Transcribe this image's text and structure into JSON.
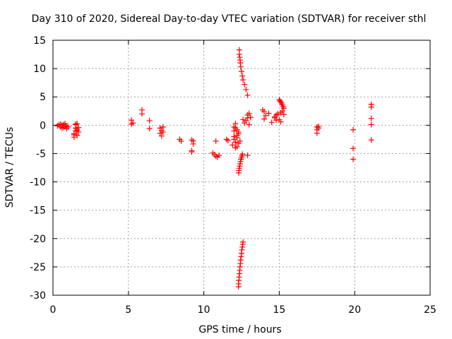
{
  "chart_data": {
    "type": "scatter",
    "title": "Day 310 of 2020, Sidereal Day-to-day VTEC variation (SDTVAR) for receiver sthl",
    "xlabel": "GPS time / hours",
    "ylabel": "SDTVAR / TECUs",
    "xlim": [
      0,
      25
    ],
    "ylim": [
      -30,
      15
    ],
    "xticks": [
      "0",
      "5",
      "10",
      "15",
      "20",
      "25"
    ],
    "yticks": [
      "15",
      "10",
      "5",
      "0",
      "-5",
      "-10",
      "-15",
      "-20",
      "-25",
      "-30"
    ],
    "grid": true,
    "marker": "plus",
    "color": "#ff0000",
    "series": [
      {
        "name": "SDTVAR",
        "x": [
          0.3,
          0.4,
          0.5,
          0.5,
          0.6,
          0.6,
          0.7,
          0.7,
          0.8,
          0.8,
          0.9,
          0.9,
          1.0,
          1.4,
          1.4,
          1.5,
          1.5,
          1.5,
          1.6,
          1.6,
          1.6,
          1.7,
          1.7,
          1.4,
          1.5,
          1.6,
          5.2,
          5.2,
          5.3,
          5.9,
          5.9,
          6.4,
          6.4,
          7.1,
          7.1,
          7.2,
          7.2,
          7.3,
          7.3,
          8.4,
          8.5,
          9.2,
          9.2,
          9.3,
          9.3,
          9.2,
          10.6,
          10.7,
          10.8,
          10.9,
          11.0,
          10.8,
          11.5,
          11.6,
          11.9,
          12.0,
          12.0,
          12.1,
          12.1,
          12.2,
          12.2,
          12.3,
          12.1,
          12.0,
          12.2,
          12.3,
          12.4,
          12.2,
          12.1,
          12.3,
          12.0,
          12.35,
          12.35,
          12.38,
          12.4,
          12.42,
          12.45,
          12.5,
          12.55,
          12.6,
          12.7,
          12.8,
          12.9,
          12.32,
          12.33,
          12.35,
          12.38,
          12.4,
          12.43,
          12.46,
          12.5,
          12.53,
          12.56,
          12.3,
          12.3,
          12.32,
          12.34,
          12.36,
          12.38,
          12.4,
          12.42,
          12.44,
          12.47,
          12.5,
          12.52,
          12.55,
          12.58,
          12.6,
          12.6,
          12.7,
          12.8,
          12.9,
          12.9,
          13.0,
          13.1,
          13.0,
          12.9,
          13.9,
          14.0,
          14.1,
          14.0,
          14.3,
          14.5,
          14.7,
          14.8,
          14.9,
          15.0,
          15.1,
          14.7,
          14.8,
          15.0,
          15.05,
          15.1,
          15.15,
          15.2,
          15.25,
          15.3,
          15.1,
          15.2,
          15.3,
          17.5,
          17.5,
          17.5,
          17.6,
          17.6,
          19.9,
          19.9,
          19.9,
          21.1,
          21.1,
          21.1,
          21.1,
          21.1
        ],
        "y": [
          -0.1,
          0.1,
          -0.3,
          0.2,
          -0.5,
          0.0,
          -0.4,
          0.1,
          -0.2,
          0.3,
          -0.6,
          -0.1,
          -0.3,
          -2.1,
          -1.5,
          -1.0,
          -0.5,
          0.2,
          -1.8,
          -0.9,
          0.3,
          -1.2,
          -0.4,
          -1.7,
          0.1,
          -0.7,
          0.2,
          0.9,
          0.4,
          2.7,
          2.0,
          0.8,
          -0.6,
          -0.5,
          -1.4,
          -1.9,
          -0.9,
          -0.3,
          -1.2,
          -2.5,
          -2.8,
          -2.6,
          -4.7,
          -3.3,
          -2.8,
          -4.5,
          -4.9,
          -5.2,
          -5.5,
          -5.6,
          -5.3,
          -2.8,
          -2.5,
          -2.7,
          -3.5,
          -2.0,
          -1.0,
          -3.0,
          -0.5,
          -2.2,
          -3.8,
          -1.5,
          0.3,
          -2.5,
          -1.8,
          -3.2,
          -2.8,
          -0.8,
          -4.0,
          -1.2,
          -0.3,
          13.3,
          12.5,
          12.0,
          11.5,
          11.0,
          10.3,
          9.5,
          8.7,
          8.0,
          7.2,
          6.3,
          5.3,
          -8.4,
          -8.0,
          -7.6,
          -7.2,
          -6.8,
          -6.4,
          -6.0,
          -5.7,
          -5.4,
          -5.1,
          -28.5,
          -28.0,
          -27.4,
          -26.8,
          -26.2,
          -25.6,
          -25.0,
          -24.4,
          -23.8,
          -23.2,
          -22.6,
          -22.0,
          -21.5,
          -21.0,
          -20.6,
          1.0,
          0.4,
          0.8,
          1.3,
          1.8,
          2.1,
          1.4,
          0.1,
          -5.3,
          2.7,
          2.4,
          1.7,
          1.1,
          2.1,
          0.5,
          1.5,
          1.8,
          2.0,
          1.0,
          0.6,
          1.3,
          0.9,
          4.5,
          4.3,
          4.1,
          3.9,
          3.6,
          3.3,
          3.0,
          2.2,
          2.5,
          1.9,
          -0.3,
          -0.8,
          -1.4,
          -0.5,
          -0.2,
          -0.8,
          -4.1,
          -6.0,
          3.7,
          3.2,
          1.2,
          0.1,
          -2.6
        ]
      }
    ]
  }
}
